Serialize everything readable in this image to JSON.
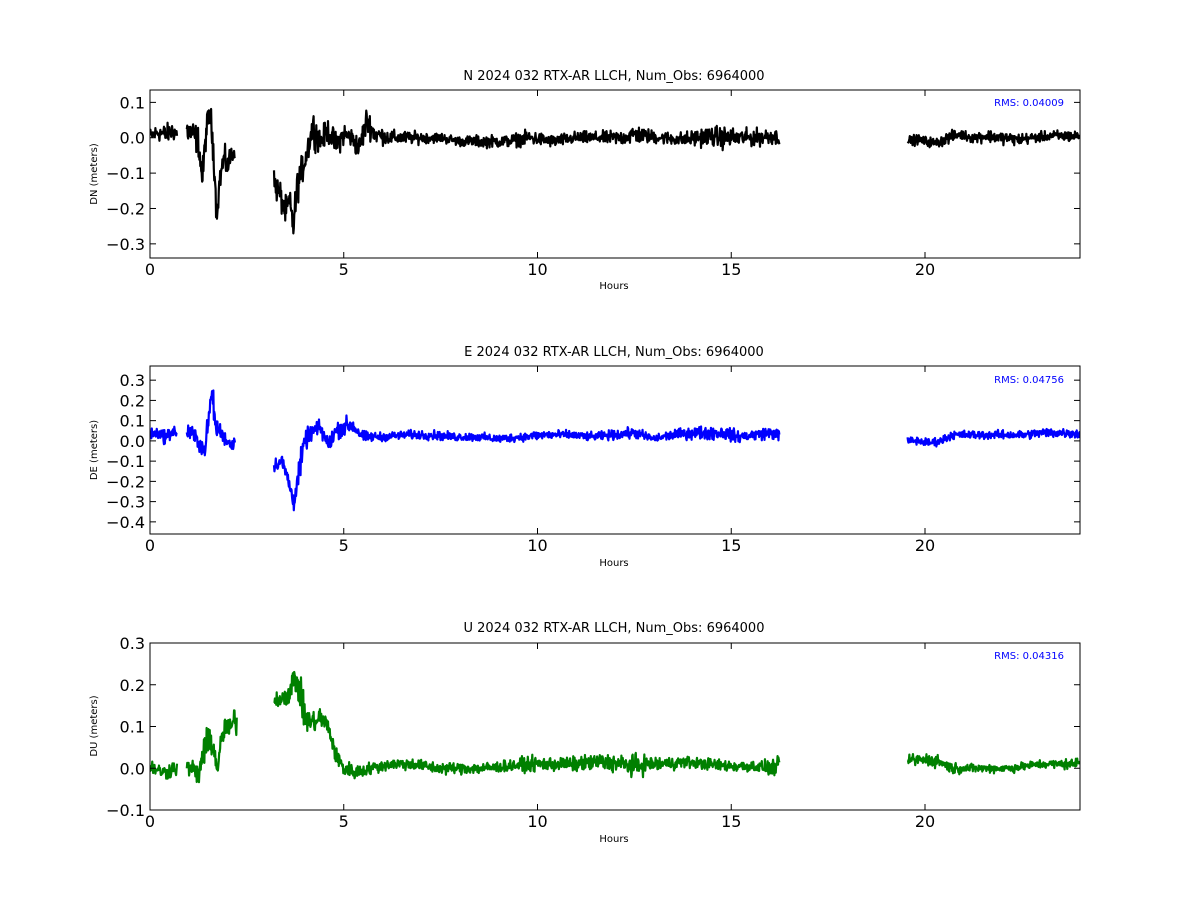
{
  "chart_data": [
    {
      "type": "line",
      "title": "N 2024 032 RTX-AR  LLCH, Num_Obs: 6964000",
      "xlabel": "Hours",
      "ylabel": "DN (meters)",
      "xlim": [
        0,
        24
      ],
      "ylim": [
        -0.34,
        0.135
      ],
      "xticks": [
        0,
        5,
        10,
        15,
        20
      ],
      "yticks": [
        0.1,
        0.0,
        -0.1,
        -0.2,
        -0.3
      ],
      "ytick_labels": [
        "0.1",
        "0.0",
        "−0.1",
        "−0.2",
        "−0.3"
      ],
      "annotation": "RMS:  0.04009",
      "grid": false,
      "series": [
        {
          "color": "#000000",
          "segments": [
            {
              "x": [
                0.0,
                0.2,
                0.4,
                0.6,
                0.7
              ],
              "center": [
                0.005,
                0.015,
                0.01,
                0.02,
                0.01
              ],
              "amp": [
                0.03,
                0.035,
                0.04,
                0.04,
                0.035
              ]
            },
            {
              "x": [
                0.95,
                1.1,
                1.25,
                1.35,
                1.45,
                1.55,
                1.65,
                1.72,
                1.8,
                1.9,
                2.0,
                2.1,
                2.2
              ],
              "center": [
                0.02,
                0.01,
                -0.01,
                -0.12,
                0.02,
                0.07,
                -0.05,
                -0.22,
                -0.12,
                -0.06,
                -0.08,
                -0.05,
                -0.03
              ],
              "amp": [
                0.05,
                0.06,
                0.06,
                0.06,
                0.06,
                0.06,
                0.07,
                0.05,
                0.05,
                0.06,
                0.05,
                0.05,
                0.04
              ]
            },
            {
              "x": [
                3.2,
                3.35,
                3.5,
                3.6,
                3.7,
                3.8,
                3.9,
                4.05,
                4.2,
                4.4,
                4.6,
                4.8,
                5.0,
                5.2,
                5.4,
                5.6,
                5.8,
                6.2,
                6.8,
                7.5,
                8.0,
                8.6,
                9.2,
                9.8,
                10.4,
                11.0,
                11.6,
                12.2,
                12.5,
                12.8,
                13.2,
                13.8,
                14.4,
                14.8,
                15.2,
                15.6,
                16.0,
                16.25
              ],
              "center": [
                -0.13,
                -0.16,
                -0.21,
                -0.18,
                -0.25,
                -0.14,
                -0.1,
                -0.04,
                0.03,
                -0.01,
                0.02,
                -0.02,
                0.01,
                0.0,
                -0.03,
                0.05,
                0.01,
                0.0,
                0.0,
                0.0,
                -0.01,
                -0.01,
                -0.01,
                0.0,
                -0.01,
                0.0,
                0.0,
                0.0,
                0.01,
                0.005,
                0.0,
                -0.005,
                0.005,
                0.0,
                0.0,
                0.0,
                0.005,
                0.0
              ],
              "amp": [
                0.06,
                0.06,
                0.06,
                0.05,
                0.07,
                0.07,
                0.06,
                0.06,
                0.07,
                0.05,
                0.05,
                0.05,
                0.05,
                0.04,
                0.05,
                0.06,
                0.04,
                0.03,
                0.025,
                0.02,
                0.02,
                0.025,
                0.025,
                0.03,
                0.025,
                0.025,
                0.025,
                0.03,
                0.04,
                0.03,
                0.025,
                0.03,
                0.04,
                0.045,
                0.035,
                0.035,
                0.035,
                0.03
              ]
            },
            {
              "x": [
                19.55,
                19.8,
                20.0,
                20.3,
                20.6,
                20.9,
                21.2,
                21.6,
                22.0,
                22.4,
                22.8,
                23.2,
                23.6,
                24.0
              ],
              "center": [
                -0.01,
                -0.005,
                -0.01,
                -0.015,
                0.0,
                0.01,
                0.0,
                0.005,
                0.0,
                -0.005,
                0.0,
                0.005,
                0.005,
                0.005
              ],
              "amp": [
                0.02,
                0.02,
                0.02,
                0.02,
                0.025,
                0.02,
                0.02,
                0.025,
                0.025,
                0.025,
                0.02,
                0.02,
                0.025,
                0.02
              ]
            }
          ]
        }
      ]
    },
    {
      "type": "line",
      "title": "E 2024 032 RTX-AR  LLCH, Num_Obs: 6964000",
      "xlabel": "Hours",
      "ylabel": "DE (meters)",
      "xlim": [
        0,
        24
      ],
      "ylim": [
        -0.46,
        0.37
      ],
      "xticks": [
        0,
        5,
        10,
        15,
        20
      ],
      "yticks": [
        0.3,
        0.2,
        0.1,
        0.0,
        -0.1,
        -0.2,
        -0.3,
        -0.4
      ],
      "ytick_labels": [
        "0.3",
        "0.2",
        "0.1",
        "0.0",
        "−0.1",
        "−0.2",
        "−0.3",
        "−0.4"
      ],
      "annotation": "RMS:  0.04756",
      "grid": false,
      "series": [
        {
          "color": "#0000ff",
          "segments": [
            {
              "x": [
                0.0,
                0.2,
                0.4,
                0.6,
                0.7
              ],
              "center": [
                0.03,
                0.04,
                0.02,
                0.05,
                0.03
              ],
              "amp": [
                0.04,
                0.04,
                0.05,
                0.05,
                0.04
              ]
            },
            {
              "x": [
                0.95,
                1.1,
                1.25,
                1.4,
                1.5,
                1.6,
                1.7,
                1.8,
                1.9,
                2.0,
                2.1,
                2.2
              ],
              "center": [
                0.05,
                0.03,
                0.0,
                -0.05,
                0.08,
                0.25,
                0.06,
                0.05,
                0.02,
                0.0,
                -0.02,
                0.0
              ],
              "amp": [
                0.06,
                0.06,
                0.07,
                0.07,
                0.08,
                0.1,
                0.07,
                0.06,
                0.05,
                0.05,
                0.05,
                0.04
              ]
            },
            {
              "x": [
                3.2,
                3.4,
                3.55,
                3.7,
                3.85,
                4.0,
                4.2,
                4.4,
                4.6,
                4.8,
                5.0,
                5.2,
                5.5,
                6.0,
                6.6,
                7.2,
                7.8,
                8.4,
                9.0,
                9.6,
                10.2,
                10.8,
                11.4,
                12.0,
                12.5,
                13.0,
                13.5,
                14.0,
                14.5,
                14.8,
                15.2,
                15.6,
                16.0,
                16.25
              ],
              "center": [
                -0.12,
                -0.1,
                -0.18,
                -0.3,
                -0.15,
                0.0,
                0.05,
                0.06,
                -0.02,
                0.05,
                0.07,
                0.08,
                0.02,
                0.02,
                0.03,
                0.03,
                0.02,
                0.02,
                0.01,
                0.02,
                0.03,
                0.03,
                0.02,
                0.03,
                0.04,
                0.01,
                0.03,
                0.04,
                0.04,
                0.04,
                0.02,
                0.03,
                0.04,
                0.03
              ],
              "amp": [
                0.05,
                0.05,
                0.06,
                0.08,
                0.1,
                0.07,
                0.06,
                0.06,
                0.06,
                0.06,
                0.07,
                0.06,
                0.04,
                0.03,
                0.03,
                0.035,
                0.03,
                0.03,
                0.03,
                0.03,
                0.035,
                0.03,
                0.03,
                0.035,
                0.04,
                0.03,
                0.035,
                0.045,
                0.05,
                0.05,
                0.04,
                0.04,
                0.045,
                0.04
              ]
            },
            {
              "x": [
                19.55,
                19.8,
                20.1,
                20.4,
                20.7,
                21.0,
                21.4,
                21.8,
                22.2,
                22.6,
                23.0,
                23.4,
                23.8,
                24.0
              ],
              "center": [
                0.0,
                0.0,
                -0.01,
                0.0,
                0.03,
                0.03,
                0.03,
                0.03,
                0.03,
                0.03,
                0.04,
                0.04,
                0.04,
                0.03
              ],
              "amp": [
                0.03,
                0.03,
                0.03,
                0.03,
                0.03,
                0.03,
                0.03,
                0.03,
                0.03,
                0.03,
                0.035,
                0.035,
                0.035,
                0.03
              ]
            }
          ]
        }
      ]
    },
    {
      "type": "line",
      "title": "U 2024 032 RTX-AR  LLCH, Num_Obs: 6964000",
      "xlabel": "Hours",
      "ylabel": "DU (meters)",
      "xlim": [
        0,
        24
      ],
      "ylim": [
        -0.1,
        0.3
      ],
      "xticks": [
        0,
        5,
        10,
        15,
        20
      ],
      "yticks": [
        0.3,
        0.2,
        0.1,
        0.0,
        -0.1
      ],
      "ytick_labels": [
        "0.3",
        "0.2",
        "0.1",
        "0.0",
        "−0.1"
      ],
      "annotation": "RMS:  0.04316",
      "grid": false,
      "series": [
        {
          "color": "#008000",
          "segments": [
            {
              "x": [
                0.0,
                0.2,
                0.4,
                0.6,
                0.7
              ],
              "center": [
                0.005,
                -0.005,
                -0.01,
                0.0,
                0.0
              ],
              "amp": [
                0.025,
                0.025,
                0.025,
                0.03,
                0.025
              ]
            },
            {
              "x": [
                0.95,
                1.1,
                1.25,
                1.35,
                1.45,
                1.55,
                1.65,
                1.75,
                1.85,
                1.95,
                2.05,
                2.15,
                2.25
              ],
              "center": [
                0.0,
                0.0,
                -0.02,
                0.03,
                0.05,
                0.08,
                0.04,
                0.0,
                0.07,
                0.1,
                0.09,
                0.11,
                0.12
              ],
              "amp": [
                0.03,
                0.03,
                0.04,
                0.05,
                0.05,
                0.06,
                0.05,
                0.04,
                0.04,
                0.05,
                0.04,
                0.05,
                0.05
              ]
            },
            {
              "x": [
                3.2,
                3.4,
                3.6,
                3.75,
                3.85,
                4.0,
                4.2,
                4.4,
                4.6,
                4.8,
                5.0,
                5.3,
                5.7,
                6.2,
                6.8,
                7.4,
                8.0,
                8.6,
                9.2,
                9.8,
                10.4,
                11.0,
                11.6,
                12.2,
                12.5,
                12.8,
                13.2,
                13.8,
                14.4,
                15.0,
                15.6,
                16.0,
                16.25
              ],
              "center": [
                0.16,
                0.17,
                0.18,
                0.22,
                0.19,
                0.12,
                0.11,
                0.12,
                0.1,
                0.03,
                0.0,
                -0.01,
                0.0,
                0.01,
                0.01,
                0.0,
                0.0,
                0.0,
                0.005,
                0.01,
                0.01,
                0.01,
                0.015,
                0.01,
                0.005,
                0.01,
                0.01,
                0.015,
                0.01,
                0.005,
                0.005,
                0.0,
                0.005
              ],
              "amp": [
                0.03,
                0.03,
                0.04,
                0.06,
                0.06,
                0.05,
                0.04,
                0.04,
                0.03,
                0.03,
                0.03,
                0.025,
                0.02,
                0.02,
                0.02,
                0.02,
                0.02,
                0.02,
                0.02,
                0.025,
                0.025,
                0.025,
                0.03,
                0.03,
                0.04,
                0.03,
                0.025,
                0.02,
                0.02,
                0.02,
                0.02,
                0.025,
                0.03
              ]
            },
            {
              "x": [
                19.55,
                19.8,
                20.1,
                20.4,
                20.7,
                21.0,
                21.4,
                21.8,
                22.2,
                22.6,
                23.0,
                23.4,
                23.8,
                24.0
              ],
              "center": [
                0.02,
                0.02,
                0.02,
                0.015,
                0.0,
                0.0,
                0.0,
                0.0,
                0.0,
                0.005,
                0.01,
                0.01,
                0.01,
                0.015
              ],
              "amp": [
                0.02,
                0.02,
                0.025,
                0.02,
                0.02,
                0.015,
                0.015,
                0.015,
                0.015,
                0.015,
                0.015,
                0.015,
                0.02,
                0.015
              ]
            }
          ]
        }
      ]
    }
  ]
}
